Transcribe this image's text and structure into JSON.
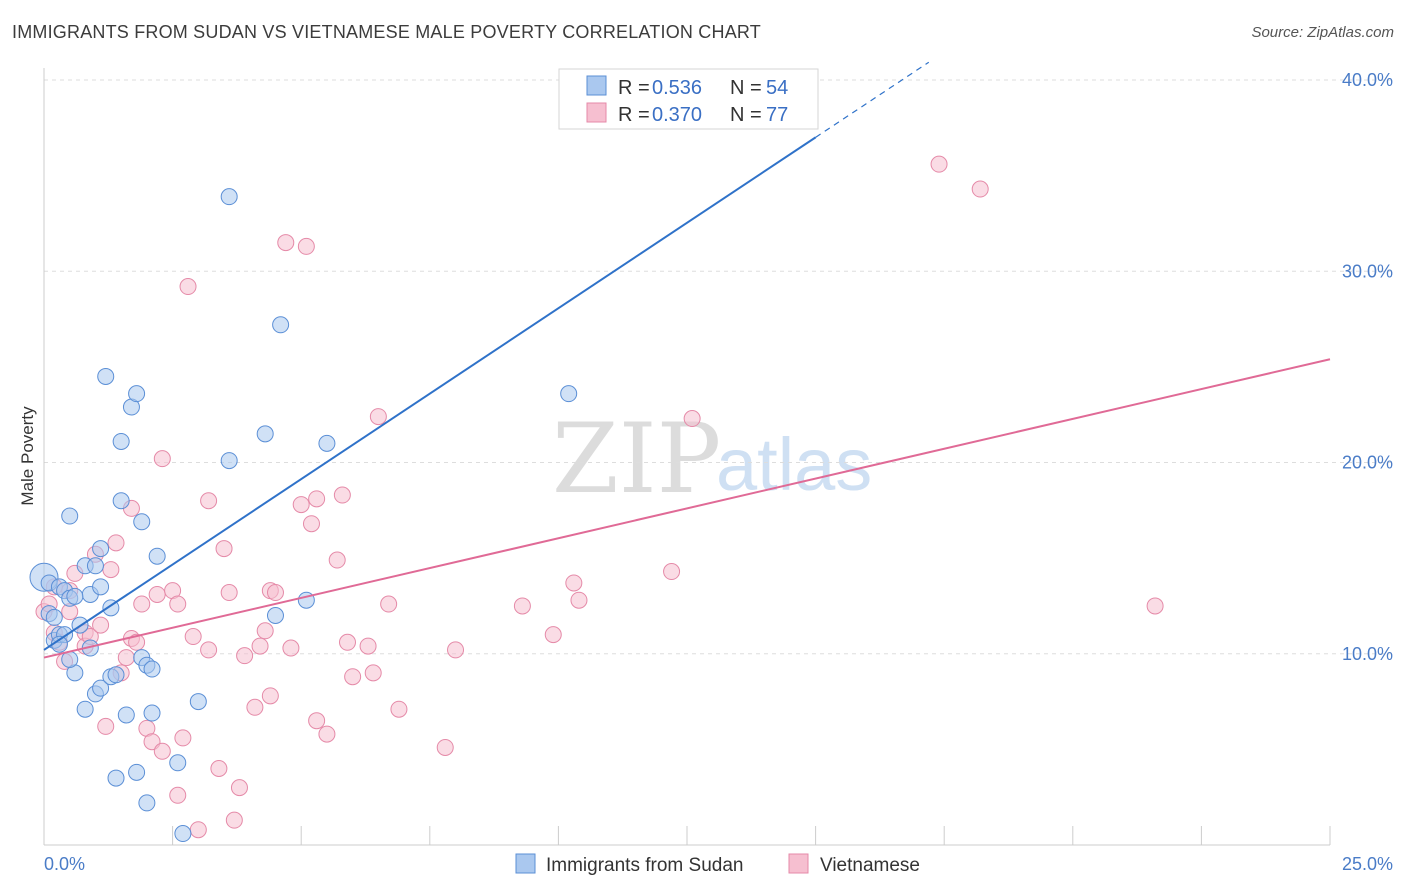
{
  "title": "IMMIGRANTS FROM SUDAN VS VIETNAMESE MALE POVERTY CORRELATION CHART",
  "source": "Source: ZipAtlas.com",
  "watermark": {
    "zip": "ZIP",
    "atlas": "atlas"
  },
  "colors": {
    "blue_fill": "#aac8ef",
    "blue_stroke": "#5b8fd6",
    "blue_line": "#2f72c9",
    "pink_fill": "#f6bfd0",
    "pink_stroke": "#e58aa8",
    "pink_line": "#e06a96",
    "grid": "#dddddd",
    "tick_text": "#4a7cc7"
  },
  "legend": {
    "rows": [
      {
        "r_label": "R = ",
        "r_value": "0.536",
        "n_label": "N = ",
        "n_value": "54"
      },
      {
        "r_label": "R = ",
        "r_value": "0.370",
        "n_label": "N = ",
        "n_value": "77"
      }
    ]
  },
  "chart_data": {
    "type": "scatter",
    "title": "IMMIGRANTS FROM SUDAN VS VIETNAMESE MALE POVERTY CORRELATION CHART",
    "xlabel": "",
    "ylabel": "Male Poverty",
    "xlim": [
      0,
      25
    ],
    "ylim": [
      0,
      40
    ],
    "x_tick_labels": [
      "0.0%",
      "25.0%"
    ],
    "y_ticks": [
      10,
      20,
      30,
      40
    ],
    "y_tick_labels": [
      "10.0%",
      "20.0%",
      "30.0%",
      "40.0%"
    ],
    "series": [
      {
        "name": "Immigrants from Sudan",
        "R": 0.536,
        "N": 54,
        "trend": {
          "x0": 0,
          "y0": 10.2,
          "x1": 15,
          "y1": 37.0,
          "dash_to_x": 17.2
        },
        "points": [
          [
            0.0,
            14.0
          ],
          [
            0.1,
            13.7
          ],
          [
            0.1,
            12.1
          ],
          [
            0.2,
            11.9
          ],
          [
            0.2,
            10.7
          ],
          [
            0.3,
            11.0
          ],
          [
            0.3,
            13.5
          ],
          [
            0.4,
            13.3
          ],
          [
            0.5,
            12.9
          ],
          [
            0.5,
            17.2
          ],
          [
            0.6,
            9.0
          ],
          [
            0.7,
            11.5
          ],
          [
            0.8,
            14.6
          ],
          [
            0.8,
            7.1
          ],
          [
            0.9,
            13.1
          ],
          [
            0.9,
            10.3
          ],
          [
            1.0,
            7.9
          ],
          [
            1.0,
            14.6
          ],
          [
            1.1,
            8.2
          ],
          [
            1.1,
            13.5
          ],
          [
            1.1,
            15.5
          ],
          [
            1.2,
            24.5
          ],
          [
            1.3,
            8.8
          ],
          [
            1.3,
            12.4
          ],
          [
            1.4,
            3.5
          ],
          [
            1.4,
            8.9
          ],
          [
            1.5,
            18.0
          ],
          [
            1.5,
            21.1
          ],
          [
            1.6,
            6.8
          ],
          [
            1.7,
            22.9
          ],
          [
            1.8,
            23.6
          ],
          [
            1.8,
            3.8
          ],
          [
            1.9,
            9.8
          ],
          [
            1.9,
            16.9
          ],
          [
            2.0,
            2.2
          ],
          [
            2.0,
            9.4
          ],
          [
            2.1,
            6.9
          ],
          [
            2.1,
            9.2
          ],
          [
            2.2,
            15.1
          ],
          [
            2.6,
            4.3
          ],
          [
            2.7,
            0.6
          ],
          [
            3.0,
            7.5
          ],
          [
            3.6,
            20.1
          ],
          [
            3.6,
            33.9
          ],
          [
            4.3,
            21.5
          ],
          [
            4.5,
            12.0
          ],
          [
            4.6,
            27.2
          ],
          [
            5.1,
            12.8
          ],
          [
            5.5,
            21.0
          ],
          [
            10.2,
            23.6
          ],
          [
            0.6,
            13.0
          ],
          [
            0.4,
            11.0
          ],
          [
            0.3,
            10.5
          ],
          [
            0.5,
            9.7
          ]
        ]
      },
      {
        "name": "Vietnamese",
        "R": 0.37,
        "N": 77,
        "trend": {
          "x0": 0,
          "y0": 9.8,
          "x1": 25,
          "y1": 25.4
        },
        "points": [
          [
            0.0,
            12.2
          ],
          [
            0.1,
            12.6
          ],
          [
            0.2,
            11.1
          ],
          [
            0.3,
            10.6
          ],
          [
            0.4,
            9.6
          ],
          [
            0.5,
            13.3
          ],
          [
            0.5,
            12.2
          ],
          [
            0.6,
            14.2
          ],
          [
            0.8,
            11.1
          ],
          [
            0.8,
            10.4
          ],
          [
            0.9,
            10.9
          ],
          [
            1.0,
            15.2
          ],
          [
            1.1,
            11.5
          ],
          [
            1.2,
            6.2
          ],
          [
            1.3,
            14.4
          ],
          [
            1.4,
            15.8
          ],
          [
            1.5,
            9.0
          ],
          [
            1.6,
            9.8
          ],
          [
            1.7,
            17.6
          ],
          [
            1.7,
            10.8
          ],
          [
            1.8,
            10.6
          ],
          [
            1.9,
            12.6
          ],
          [
            2.0,
            6.1
          ],
          [
            2.1,
            5.4
          ],
          [
            2.2,
            13.1
          ],
          [
            2.3,
            4.9
          ],
          [
            2.3,
            20.2
          ],
          [
            2.5,
            13.3
          ],
          [
            2.6,
            2.6
          ],
          [
            2.6,
            12.6
          ],
          [
            2.7,
            5.6
          ],
          [
            2.8,
            29.2
          ],
          [
            2.9,
            10.9
          ],
          [
            3.0,
            0.8
          ],
          [
            3.2,
            18.0
          ],
          [
            3.2,
            10.2
          ],
          [
            3.4,
            4.0
          ],
          [
            3.5,
            15.5
          ],
          [
            3.6,
            13.2
          ],
          [
            3.7,
            1.3
          ],
          [
            3.8,
            3.0
          ],
          [
            3.9,
            9.9
          ],
          [
            4.1,
            7.2
          ],
          [
            4.2,
            10.4
          ],
          [
            4.3,
            11.2
          ],
          [
            4.4,
            13.3
          ],
          [
            4.4,
            7.8
          ],
          [
            4.5,
            13.2
          ],
          [
            4.7,
            31.5
          ],
          [
            4.8,
            10.3
          ],
          [
            5.0,
            17.8
          ],
          [
            5.1,
            31.3
          ],
          [
            5.2,
            16.8
          ],
          [
            5.3,
            18.1
          ],
          [
            5.3,
            6.5
          ],
          [
            5.5,
            5.8
          ],
          [
            5.7,
            14.9
          ],
          [
            5.8,
            18.3
          ],
          [
            5.9,
            10.6
          ],
          [
            6.0,
            8.8
          ],
          [
            6.3,
            10.4
          ],
          [
            6.4,
            9.0
          ],
          [
            6.5,
            22.4
          ],
          [
            6.7,
            12.6
          ],
          [
            6.9,
            7.1
          ],
          [
            7.8,
            5.1
          ],
          [
            8.0,
            10.2
          ],
          [
            9.3,
            12.5
          ],
          [
            9.9,
            11.0
          ],
          [
            10.3,
            13.7
          ],
          [
            10.4,
            12.8
          ],
          [
            12.2,
            14.3
          ],
          [
            12.6,
            22.3
          ],
          [
            17.4,
            35.6
          ],
          [
            18.2,
            34.3
          ],
          [
            21.6,
            12.5
          ],
          [
            0.2,
            13.5
          ]
        ]
      }
    ],
    "legend_labels": [
      "Immigrants from Sudan",
      "Vietnamese"
    ]
  }
}
